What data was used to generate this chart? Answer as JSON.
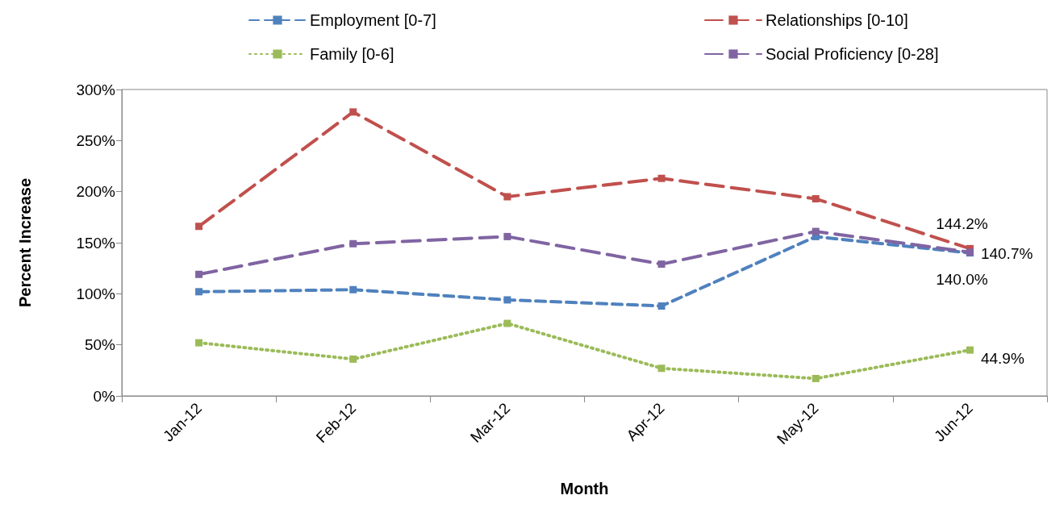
{
  "chart_data": {
    "type": "line",
    "xlabel": "Month",
    "ylabel": "Percent Increase",
    "categories": [
      "Jan-12",
      "Feb-12",
      "Mar-12",
      "Apr-12",
      "May-12",
      "Jun-12"
    ],
    "series": [
      {
        "name": "Employment [0-7]",
        "color": "#4f81bd",
        "line_style": "dashed",
        "values": [
          102,
          104,
          94,
          88,
          156,
          140.0
        ],
        "value_labels": [
          null,
          null,
          null,
          null,
          null,
          "140.0%"
        ]
      },
      {
        "name": "Relationships [0-10]",
        "color": "#c0504d",
        "line_style": "dashed",
        "values": [
          166,
          278,
          195,
          213,
          193,
          144.2
        ],
        "value_labels": [
          null,
          null,
          null,
          null,
          null,
          "144.2%"
        ]
      },
      {
        "name": "Family [0-6]",
        "color": "#9bbb59",
        "line_style": "dotted",
        "values": [
          52,
          36,
          71,
          27,
          17,
          44.9
        ],
        "value_labels": [
          null,
          null,
          null,
          null,
          null,
          "44.9%"
        ]
      },
      {
        "name": "Social Proficiency [0-28]",
        "color": "#8064a2",
        "line_style": "dashed",
        "values": [
          119,
          149,
          156,
          129,
          161,
          140.7
        ],
        "value_labels": [
          null,
          null,
          null,
          null,
          null,
          "140.7%"
        ]
      }
    ],
    "ylim": [
      0,
      300
    ],
    "yticks": [
      {
        "value": 0,
        "label": "0%"
      },
      {
        "value": 50,
        "label": "50%"
      },
      {
        "value": 100,
        "label": "100%"
      },
      {
        "value": 150,
        "label": "150%"
      },
      {
        "value": 200,
        "label": "200%"
      },
      {
        "value": 250,
        "label": "250%"
      },
      {
        "value": 300,
        "label": "300%"
      }
    ],
    "grid": false,
    "legend": "top",
    "marker": "square"
  }
}
